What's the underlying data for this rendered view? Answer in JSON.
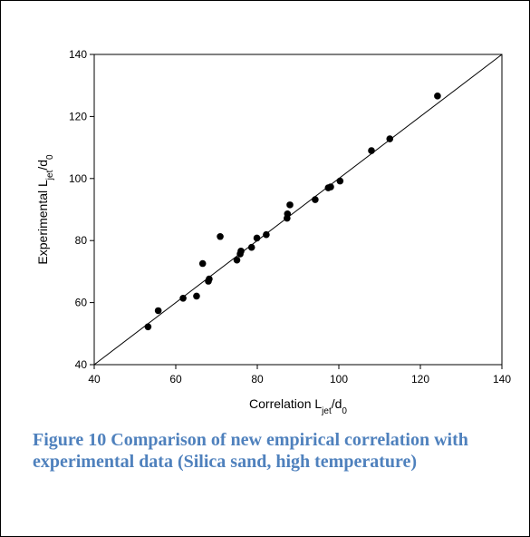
{
  "figure": {
    "caption": "Figure 10 Comparison of new empirical correlation with experimental data (Silica sand, high temperature)"
  },
  "chart_data": {
    "type": "scatter",
    "title": "",
    "xlabel": {
      "main": "Correlation L",
      "sub1": "jet",
      "mid": "/d",
      "sub2": "0"
    },
    "ylabel": {
      "main": "Experimental L",
      "sub1": "jet",
      "mid": "/d",
      "sub2": "0"
    },
    "xlim": [
      40,
      140
    ],
    "ylim": [
      40,
      140
    ],
    "xticks": [
      40,
      60,
      80,
      100,
      120,
      140
    ],
    "yticks": [
      40,
      60,
      80,
      100,
      120,
      140
    ],
    "grid": false,
    "reference_line": {
      "from": [
        40,
        40
      ],
      "to": [
        140,
        140
      ]
    },
    "series": [
      {
        "marker": "filled-circle",
        "color": "#000000",
        "points": [
          [
            53.2,
            52.2
          ],
          [
            55.7,
            57.4
          ],
          [
            61.8,
            61.4
          ],
          [
            65.1,
            62.1
          ],
          [
            66.6,
            72.6
          ],
          [
            68.0,
            66.9
          ],
          [
            68.2,
            67.6
          ],
          [
            70.9,
            81.3
          ],
          [
            75.0,
            73.7
          ],
          [
            75.8,
            75.7
          ],
          [
            76.0,
            76.6
          ],
          [
            78.6,
            77.8
          ],
          [
            79.9,
            80.8
          ],
          [
            82.2,
            81.9
          ],
          [
            87.3,
            87.2
          ],
          [
            87.4,
            88.6
          ],
          [
            88.0,
            91.5
          ],
          [
            94.2,
            93.2
          ],
          [
            97.4,
            97.0
          ],
          [
            98.0,
            97.3
          ],
          [
            100.3,
            99.2
          ],
          [
            108.0,
            109.0
          ],
          [
            112.5,
            112.8
          ],
          [
            124.2,
            126.6
          ]
        ]
      }
    ]
  }
}
